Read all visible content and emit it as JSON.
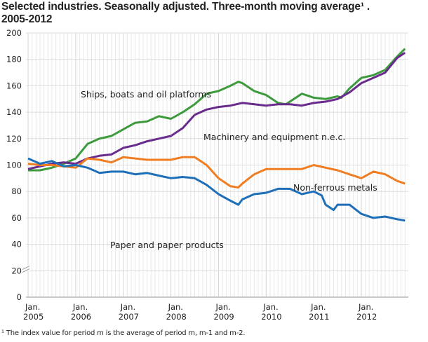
{
  "title_line1": "Selected industries. Seasonally adjusted. Three-month moving average¹ .",
  "title_line2": "2005-2012",
  "footnote": "¹ The index value for period m is the average of period m, m-1 and m-2.",
  "chart_data": {
    "type": "line",
    "title": "Selected industries. Seasonally adjusted. Three-month moving average¹ . 2005-2012",
    "xlabel": "",
    "ylabel": "",
    "ylim": [
      0,
      200
    ],
    "yticks": [
      "0",
      "20",
      "40",
      "60",
      "80",
      "100",
      "120",
      "140",
      "160",
      "180",
      "200"
    ],
    "y_axis_break": true,
    "xticks": [
      [
        "Jan.",
        "2005"
      ],
      [
        "Jan.",
        "2006"
      ],
      [
        "Jan.",
        "2007"
      ],
      [
        "Jan.",
        "2008"
      ],
      [
        "Jan.",
        "2009"
      ],
      [
        "Jan.",
        "2010"
      ],
      [
        "Jan.",
        "2011"
      ],
      [
        "Jan.",
        "2012"
      ]
    ],
    "xlim": [
      "2005-01",
      "2012-12"
    ],
    "grid": true,
    "legend": "inline labels",
    "series": [
      {
        "name": "Ships, boats and oil platforms",
        "color": "#3d9a3d",
        "points": [
          [
            "2005-01",
            96
          ],
          [
            "2005-04",
            96
          ],
          [
            "2005-07",
            98
          ],
          [
            "2005-10",
            101
          ],
          [
            "2006-01",
            105
          ],
          [
            "2006-04",
            116
          ],
          [
            "2006-07",
            120
          ],
          [
            "2006-10",
            122
          ],
          [
            "2007-01",
            127
          ],
          [
            "2007-04",
            132
          ],
          [
            "2007-07",
            133
          ],
          [
            "2007-10",
            137
          ],
          [
            "2008-01",
            135
          ],
          [
            "2008-04",
            140
          ],
          [
            "2008-07",
            146
          ],
          [
            "2008-10",
            154
          ],
          [
            "2009-01",
            156
          ],
          [
            "2009-04",
            160
          ],
          [
            "2009-06",
            163
          ],
          [
            "2009-07",
            162
          ],
          [
            "2009-10",
            156
          ],
          [
            "2010-01",
            153
          ],
          [
            "2010-04",
            147
          ],
          [
            "2010-06",
            146
          ],
          [
            "2010-07",
            148
          ],
          [
            "2010-10",
            154
          ],
          [
            "2011-01",
            151
          ],
          [
            "2011-04",
            150
          ],
          [
            "2011-07",
            152
          ],
          [
            "2011-08",
            151
          ],
          [
            "2011-10",
            158
          ],
          [
            "2012-01",
            166
          ],
          [
            "2012-04",
            168
          ],
          [
            "2012-07",
            172
          ],
          [
            "2012-10",
            182
          ],
          [
            "2012-12",
            188
          ]
        ]
      },
      {
        "name": "Machinery and equipment n.e.c.",
        "color": "#6a2c8c",
        "points": [
          [
            "2005-01",
            97
          ],
          [
            "2005-04",
            99
          ],
          [
            "2005-07",
            101
          ],
          [
            "2005-10",
            102
          ],
          [
            "2006-01",
            101
          ],
          [
            "2006-04",
            105
          ],
          [
            "2006-07",
            107
          ],
          [
            "2006-10",
            108
          ],
          [
            "2007-01",
            113
          ],
          [
            "2007-04",
            115
          ],
          [
            "2007-07",
            118
          ],
          [
            "2007-10",
            120
          ],
          [
            "2008-01",
            122
          ],
          [
            "2008-04",
            128
          ],
          [
            "2008-07",
            138
          ],
          [
            "2008-10",
            142
          ],
          [
            "2009-01",
            144
          ],
          [
            "2009-04",
            145
          ],
          [
            "2009-07",
            147
          ],
          [
            "2009-10",
            146
          ],
          [
            "2010-01",
            145
          ],
          [
            "2010-04",
            146
          ],
          [
            "2010-07",
            146
          ],
          [
            "2010-10",
            145
          ],
          [
            "2011-01",
            147
          ],
          [
            "2011-04",
            148
          ],
          [
            "2011-07",
            150
          ],
          [
            "2011-10",
            155
          ],
          [
            "2012-01",
            162
          ],
          [
            "2012-04",
            166
          ],
          [
            "2012-07",
            170
          ],
          [
            "2012-10",
            181
          ],
          [
            "2012-12",
            185
          ]
        ]
      },
      {
        "name": "Non-ferrous metals",
        "color": "#f07d22",
        "points": [
          [
            "2005-01",
            101
          ],
          [
            "2005-04",
            100
          ],
          [
            "2005-07",
            100
          ],
          [
            "2005-10",
            99
          ],
          [
            "2006-01",
            98
          ],
          [
            "2006-04",
            105
          ],
          [
            "2006-07",
            104
          ],
          [
            "2006-10",
            102
          ],
          [
            "2007-01",
            106
          ],
          [
            "2007-04",
            105
          ],
          [
            "2007-07",
            104
          ],
          [
            "2007-10",
            104
          ],
          [
            "2008-01",
            104
          ],
          [
            "2008-04",
            106
          ],
          [
            "2008-07",
            106
          ],
          [
            "2008-10",
            100
          ],
          [
            "2009-01",
            90
          ],
          [
            "2009-04",
            84
          ],
          [
            "2009-06",
            83
          ],
          [
            "2009-07",
            86
          ],
          [
            "2009-10",
            93
          ],
          [
            "2010-01",
            97
          ],
          [
            "2010-04",
            97
          ],
          [
            "2010-07",
            97
          ],
          [
            "2010-10",
            97
          ],
          [
            "2011-01",
            100
          ],
          [
            "2011-04",
            98
          ],
          [
            "2011-07",
            96
          ],
          [
            "2011-10",
            93
          ],
          [
            "2012-01",
            90
          ],
          [
            "2012-04",
            95
          ],
          [
            "2012-07",
            93
          ],
          [
            "2012-10",
            88
          ],
          [
            "2012-12",
            86
          ]
        ]
      },
      {
        "name": "Paper and paper products",
        "color": "#1f6fb8",
        "points": [
          [
            "2005-01",
            105
          ],
          [
            "2005-04",
            101
          ],
          [
            "2005-07",
            103
          ],
          [
            "2005-10",
            99
          ],
          [
            "2006-01",
            100
          ],
          [
            "2006-04",
            98
          ],
          [
            "2006-07",
            94
          ],
          [
            "2006-10",
            95
          ],
          [
            "2007-01",
            95
          ],
          [
            "2007-04",
            93
          ],
          [
            "2007-07",
            94
          ],
          [
            "2007-10",
            92
          ],
          [
            "2008-01",
            90
          ],
          [
            "2008-04",
            91
          ],
          [
            "2008-07",
            90
          ],
          [
            "2008-10",
            85
          ],
          [
            "2009-01",
            78
          ],
          [
            "2009-04",
            73
          ],
          [
            "2009-06",
            70
          ],
          [
            "2009-07",
            74
          ],
          [
            "2009-10",
            78
          ],
          [
            "2010-01",
            79
          ],
          [
            "2010-04",
            82
          ],
          [
            "2010-07",
            82
          ],
          [
            "2010-10",
            78
          ],
          [
            "2011-01",
            80
          ],
          [
            "2011-03",
            77
          ],
          [
            "2011-04",
            70
          ],
          [
            "2011-06",
            66
          ],
          [
            "2011-07",
            70
          ],
          [
            "2011-10",
            70
          ],
          [
            "2012-01",
            63
          ],
          [
            "2012-04",
            60
          ],
          [
            "2012-07",
            61
          ],
          [
            "2012-10",
            59
          ],
          [
            "2012-12",
            58
          ]
        ]
      }
    ]
  }
}
